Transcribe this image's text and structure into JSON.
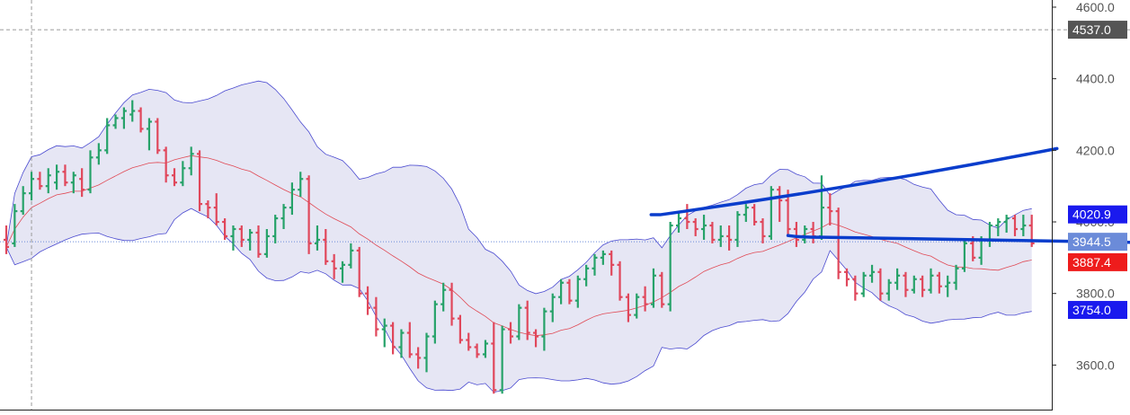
{
  "chart_data": {
    "type": "ohlc",
    "title": "",
    "xlabel": "",
    "ylabel": "",
    "ylim": [
      3473,
      4620
    ],
    "yticks": [
      3600,
      3800,
      4000,
      4200,
      4400,
      4600
    ],
    "ytick_labels": [
      "3600.0",
      "3800.0",
      "4000.0",
      "4200.0",
      "4400.0",
      "4600.0"
    ],
    "grid": false,
    "colors": {
      "up": "#26a269",
      "down": "#e0475b",
      "band_fill": "#ddddf0",
      "band_line": "#4a4ad0",
      "mid_line": "#e04a55",
      "trendline": "#0a3dcc",
      "crosshair": "#9a9a9a",
      "last_line": "#6b8bd9"
    },
    "crosshair_price": {
      "label": "4537.0",
      "value": 4537,
      "bg": "#555555"
    },
    "price_labels": [
      {
        "label": "4020.9",
        "value": 4020.9,
        "bg": "#1a1aee"
      },
      {
        "label": "3944.5",
        "value": 3944.5,
        "bg": "#6b8bd9"
      },
      {
        "label": "3887.4",
        "value": 3887.4,
        "bg": "#ee1c1c"
      },
      {
        "label": "3754.0",
        "value": 3754.0,
        "bg": "#1a1aee"
      }
    ],
    "bars": [
      [
        3950,
        3990,
        3910,
        3930
      ],
      [
        3940,
        4050,
        3930,
        4030
      ],
      [
        4030,
        4100,
        4020,
        4080
      ],
      [
        4080,
        4140,
        4060,
        4120
      ],
      [
        4120,
        4140,
        4090,
        4100
      ],
      [
        4100,
        4150,
        4080,
        4130
      ],
      [
        4110,
        4160,
        4090,
        4140
      ],
      [
        4140,
        4160,
        4100,
        4110
      ],
      [
        4110,
        4140,
        4080,
        4130
      ],
      [
        4120,
        4150,
        4070,
        4090
      ],
      [
        4090,
        4200,
        4080,
        4180
      ],
      [
        4180,
        4220,
        4160,
        4200
      ],
      [
        4200,
        4290,
        4190,
        4270
      ],
      [
        4270,
        4300,
        4260,
        4290
      ],
      [
        4290,
        4320,
        4260,
        4310
      ],
      [
        4300,
        4340,
        4280,
        4310
      ],
      [
        4310,
        4320,
        4250,
        4260
      ],
      [
        4260,
        4290,
        4200,
        4280
      ],
      [
        4280,
        4290,
        4190,
        4200
      ],
      [
        4200,
        4210,
        4110,
        4130
      ],
      [
        4130,
        4150,
        4100,
        4110
      ],
      [
        4110,
        4170,
        4100,
        4150
      ],
      [
        4150,
        4210,
        4130,
        4190
      ],
      [
        4190,
        4200,
        4030,
        4050
      ],
      [
        4050,
        4060,
        4010,
        4040
      ],
      [
        4040,
        4080,
        3990,
        4000
      ],
      [
        4000,
        4010,
        3950,
        3960
      ],
      [
        3960,
        3990,
        3920,
        3980
      ],
      [
        3980,
        3990,
        3930,
        3950
      ],
      [
        3950,
        3980,
        3920,
        3970
      ],
      [
        3970,
        3990,
        3900,
        3910
      ],
      [
        3910,
        3980,
        3900,
        3960
      ],
      [
        3960,
        4020,
        3940,
        4010
      ],
      [
        4010,
        4050,
        3980,
        4040
      ],
      [
        4040,
        4110,
        4020,
        4090
      ],
      [
        4090,
        4140,
        4070,
        4120
      ],
      [
        4120,
        4130,
        3910,
        3940
      ],
      [
        3940,
        3990,
        3920,
        3950
      ],
      [
        3950,
        3980,
        3880,
        3890
      ],
      [
        3890,
        3910,
        3840,
        3870
      ],
      [
        3870,
        3890,
        3830,
        3880
      ],
      [
        3880,
        3940,
        3870,
        3920
      ],
      [
        3920,
        3930,
        3790,
        3800
      ],
      [
        3800,
        3820,
        3740,
        3760
      ],
      [
        3760,
        3790,
        3680,
        3700
      ],
      [
        3700,
        3730,
        3650,
        3710
      ],
      [
        3710,
        3720,
        3630,
        3650
      ],
      [
        3650,
        3700,
        3620,
        3690
      ],
      [
        3690,
        3720,
        3620,
        3630
      ],
      [
        3630,
        3650,
        3590,
        3620
      ],
      [
        3620,
        3690,
        3580,
        3680
      ],
      [
        3680,
        3780,
        3660,
        3770
      ],
      [
        3770,
        3830,
        3750,
        3810
      ],
      [
        3810,
        3830,
        3710,
        3730
      ],
      [
        3730,
        3740,
        3660,
        3670
      ],
      [
        3670,
        3690,
        3640,
        3650
      ],
      [
        3650,
        3660,
        3620,
        3630
      ],
      [
        3630,
        3670,
        3620,
        3660
      ],
      [
        3660,
        3720,
        3520,
        3530
      ],
      [
        3530,
        3710,
        3520,
        3700
      ],
      [
        3700,
        3720,
        3660,
        3680
      ],
      [
        3680,
        3770,
        3670,
        3760
      ],
      [
        3760,
        3780,
        3670,
        3690
      ],
      [
        3690,
        3700,
        3650,
        3680
      ],
      [
        3680,
        3760,
        3640,
        3750
      ],
      [
        3750,
        3800,
        3720,
        3790
      ],
      [
        3790,
        3840,
        3770,
        3830
      ],
      [
        3830,
        3840,
        3770,
        3780
      ],
      [
        3780,
        3850,
        3760,
        3840
      ],
      [
        3840,
        3880,
        3820,
        3870
      ],
      [
        3870,
        3910,
        3850,
        3900
      ],
      [
        3900,
        3920,
        3880,
        3910
      ],
      [
        3910,
        3920,
        3850,
        3880
      ],
      [
        3880,
        3890,
        3780,
        3790
      ],
      [
        3790,
        3800,
        3720,
        3740
      ],
      [
        3740,
        3800,
        3730,
        3790
      ],
      [
        3790,
        3820,
        3750,
        3770
      ],
      [
        3770,
        3870,
        3760,
        3850
      ],
      [
        3850,
        3860,
        3760,
        3770
      ],
      [
        3770,
        4000,
        3750,
        3990
      ],
      [
        3990,
        4030,
        3970,
        4010
      ],
      [
        4010,
        4050,
        3980,
        4000
      ],
      [
        4000,
        4010,
        3960,
        3980
      ],
      [
        3980,
        4020,
        3950,
        3990
      ],
      [
        3990,
        4000,
        3940,
        3950
      ],
      [
        3950,
        3990,
        3930,
        3960
      ],
      [
        3960,
        3990,
        3920,
        3950
      ],
      [
        3950,
        4030,
        3930,
        4020
      ],
      [
        4020,
        4050,
        4000,
        4040
      ],
      [
        4040,
        4050,
        3990,
        4000
      ],
      [
        4000,
        4010,
        3940,
        3960
      ],
      [
        3960,
        4100,
        3950,
        4090
      ],
      [
        4090,
        4100,
        4000,
        4060
      ],
      [
        4060,
        4090,
        3960,
        3980
      ],
      [
        3980,
        4000,
        3930,
        3950
      ],
      [
        3950,
        3990,
        3940,
        3980
      ],
      [
        3980,
        4000,
        3940,
        3960
      ],
      [
        3960,
        4130,
        3950,
        4040
      ],
      [
        4040,
        4080,
        3990,
        4030
      ],
      [
        4030,
        4040,
        3840,
        3860
      ],
      [
        3860,
        3870,
        3820,
        3840
      ],
      [
        3840,
        3850,
        3780,
        3800
      ],
      [
        3800,
        3860,
        3790,
        3850
      ],
      [
        3850,
        3880,
        3830,
        3860
      ],
      [
        3860,
        3870,
        3780,
        3800
      ],
      [
        3800,
        3840,
        3780,
        3830
      ],
      [
        3830,
        3870,
        3810,
        3850
      ],
      [
        3850,
        3860,
        3790,
        3810
      ],
      [
        3810,
        3850,
        3800,
        3840
      ],
      [
        3840,
        3850,
        3790,
        3810
      ],
      [
        3810,
        3870,
        3800,
        3850
      ],
      [
        3850,
        3860,
        3800,
        3820
      ],
      [
        3820,
        3850,
        3790,
        3830
      ],
      [
        3830,
        3880,
        3810,
        3870
      ],
      [
        3870,
        3950,
        3860,
        3940
      ],
      [
        3940,
        3960,
        3890,
        3900
      ],
      [
        3900,
        3960,
        3880,
        3950
      ],
      [
        3950,
        4000,
        3930,
        3990
      ],
      [
        3990,
        4010,
        3960,
        4000
      ],
      [
        4000,
        4020,
        3970,
        4010
      ],
      [
        4010,
        4020,
        3960,
        3980
      ],
      [
        3980,
        4020,
        3960,
        3990
      ],
      [
        3990,
        4020,
        3930,
        3940
      ]
    ],
    "bollinger_period": 20,
    "bollinger_stddev": 2,
    "trendlines": [
      {
        "from": [
          78,
          4020
        ],
        "to": [
          125,
          4205
        ]
      },
      {
        "from": [
          93,
          3962
        ],
        "to": [
          154,
          3947
        ]
      }
    ],
    "crosshair_bar_index": 3
  }
}
